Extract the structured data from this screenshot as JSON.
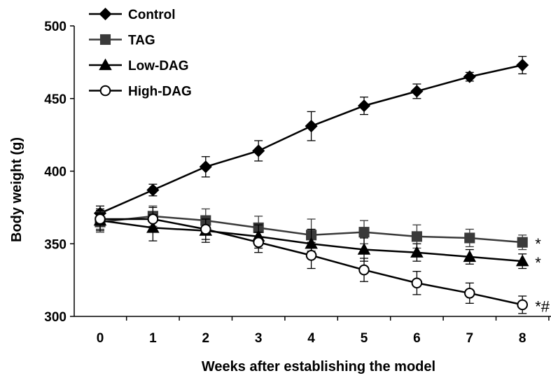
{
  "chart_data": {
    "type": "line",
    "title": "",
    "xlabel": "Weeks after establishing the model",
    "ylabel": "Body weight (g)",
    "x": [
      0,
      1,
      2,
      3,
      4,
      5,
      6,
      7,
      8
    ],
    "x_tick_labels": [
      "0",
      "1",
      "2",
      "3",
      "4",
      "5",
      "6",
      "7",
      "8"
    ],
    "xlim": [
      0,
      8
    ],
    "ylim": [
      300,
      500
    ],
    "y_ticks": [
      300,
      350,
      400,
      450,
      500
    ],
    "y_tick_labels": [
      "300",
      "350",
      "400",
      "450",
      "500"
    ],
    "grid": false,
    "legend_position": "top-left",
    "series": [
      {
        "name": "Control",
        "marker": "diamond",
        "marker_fill": "filled",
        "color": "#000000",
        "values": [
          371,
          387,
          403,
          414,
          431,
          445,
          455,
          465,
          473
        ],
        "errors": [
          5,
          4,
          7,
          7,
          10,
          6,
          5,
          3,
          6
        ],
        "significance": ""
      },
      {
        "name": "TAG",
        "marker": "square",
        "marker_fill": "filled",
        "color": "#3a3a3a",
        "values": [
          365,
          369,
          366,
          361,
          356,
          358,
          355,
          354,
          351
        ],
        "errors": [
          7,
          7,
          8,
          8,
          11,
          8,
          8,
          6,
          5
        ],
        "significance": "*"
      },
      {
        "name": "Low-DAG",
        "marker": "triangle",
        "marker_fill": "filled",
        "color": "#000000",
        "values": [
          366,
          361,
          359,
          355,
          350,
          346,
          344,
          341,
          338
        ],
        "errors": [
          7,
          9,
          8,
          8,
          10,
          8,
          6,
          5,
          5
        ],
        "significance": "*"
      },
      {
        "name": "High-DAG",
        "marker": "circle",
        "marker_fill": "open",
        "color": "#000000",
        "values": [
          367,
          367,
          360,
          351,
          342,
          332,
          323,
          316,
          308
        ],
        "errors": [
          7,
          8,
          7,
          7,
          9,
          8,
          8,
          7,
          6
        ],
        "significance": "*#"
      }
    ]
  }
}
